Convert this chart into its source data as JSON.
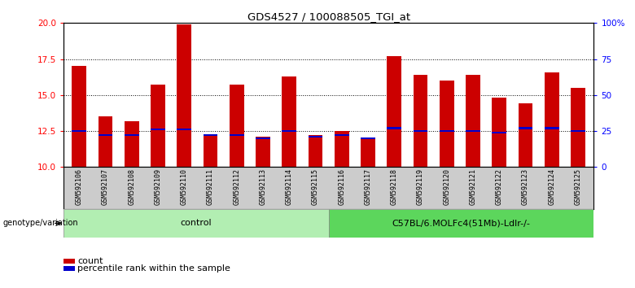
{
  "title": "GDS4527 / 100088505_TGI_at",
  "samples": [
    "GSM592106",
    "GSM592107",
    "GSM592108",
    "GSM592109",
    "GSM592110",
    "GSM592111",
    "GSM592112",
    "GSM592113",
    "GSM592114",
    "GSM592115",
    "GSM592116",
    "GSM592117",
    "GSM592118",
    "GSM592119",
    "GSM592120",
    "GSM592121",
    "GSM592122",
    "GSM592123",
    "GSM592124",
    "GSM592125"
  ],
  "count_values": [
    17.0,
    13.5,
    13.2,
    15.7,
    19.9,
    12.3,
    15.7,
    12.1,
    16.3,
    12.2,
    12.5,
    12.0,
    17.7,
    16.4,
    16.0,
    16.4,
    14.8,
    14.4,
    16.6,
    15.5
  ],
  "percentile_values": [
    25,
    22,
    22,
    26,
    26,
    22,
    22,
    20,
    25,
    21,
    22,
    20,
    27,
    25,
    25,
    25,
    24,
    27,
    27,
    25
  ],
  "ylim_left": [
    10,
    20
  ],
  "ylim_right": [
    0,
    100
  ],
  "yticks_left": [
    10,
    12.5,
    15,
    17.5,
    20
  ],
  "yticks_right": [
    0,
    25,
    50,
    75,
    100
  ],
  "ytick_labels_right": [
    "0",
    "25",
    "50",
    "75",
    "100%"
  ],
  "bar_color": "#cc0000",
  "marker_color": "#0000cc",
  "control_label": "control",
  "treatment_label": "C57BL/6.MOLFc4(51Mb)-Ldlr-/-",
  "control_color": "#b2eeb2",
  "treatment_color": "#5cd65c",
  "genotype_label": "genotype/variation",
  "legend_count": "count",
  "legend_pct": "percentile rank within the sample",
  "n_control": 10,
  "n_treatment": 10,
  "grid_lines": [
    12.5,
    15.0,
    17.5
  ]
}
